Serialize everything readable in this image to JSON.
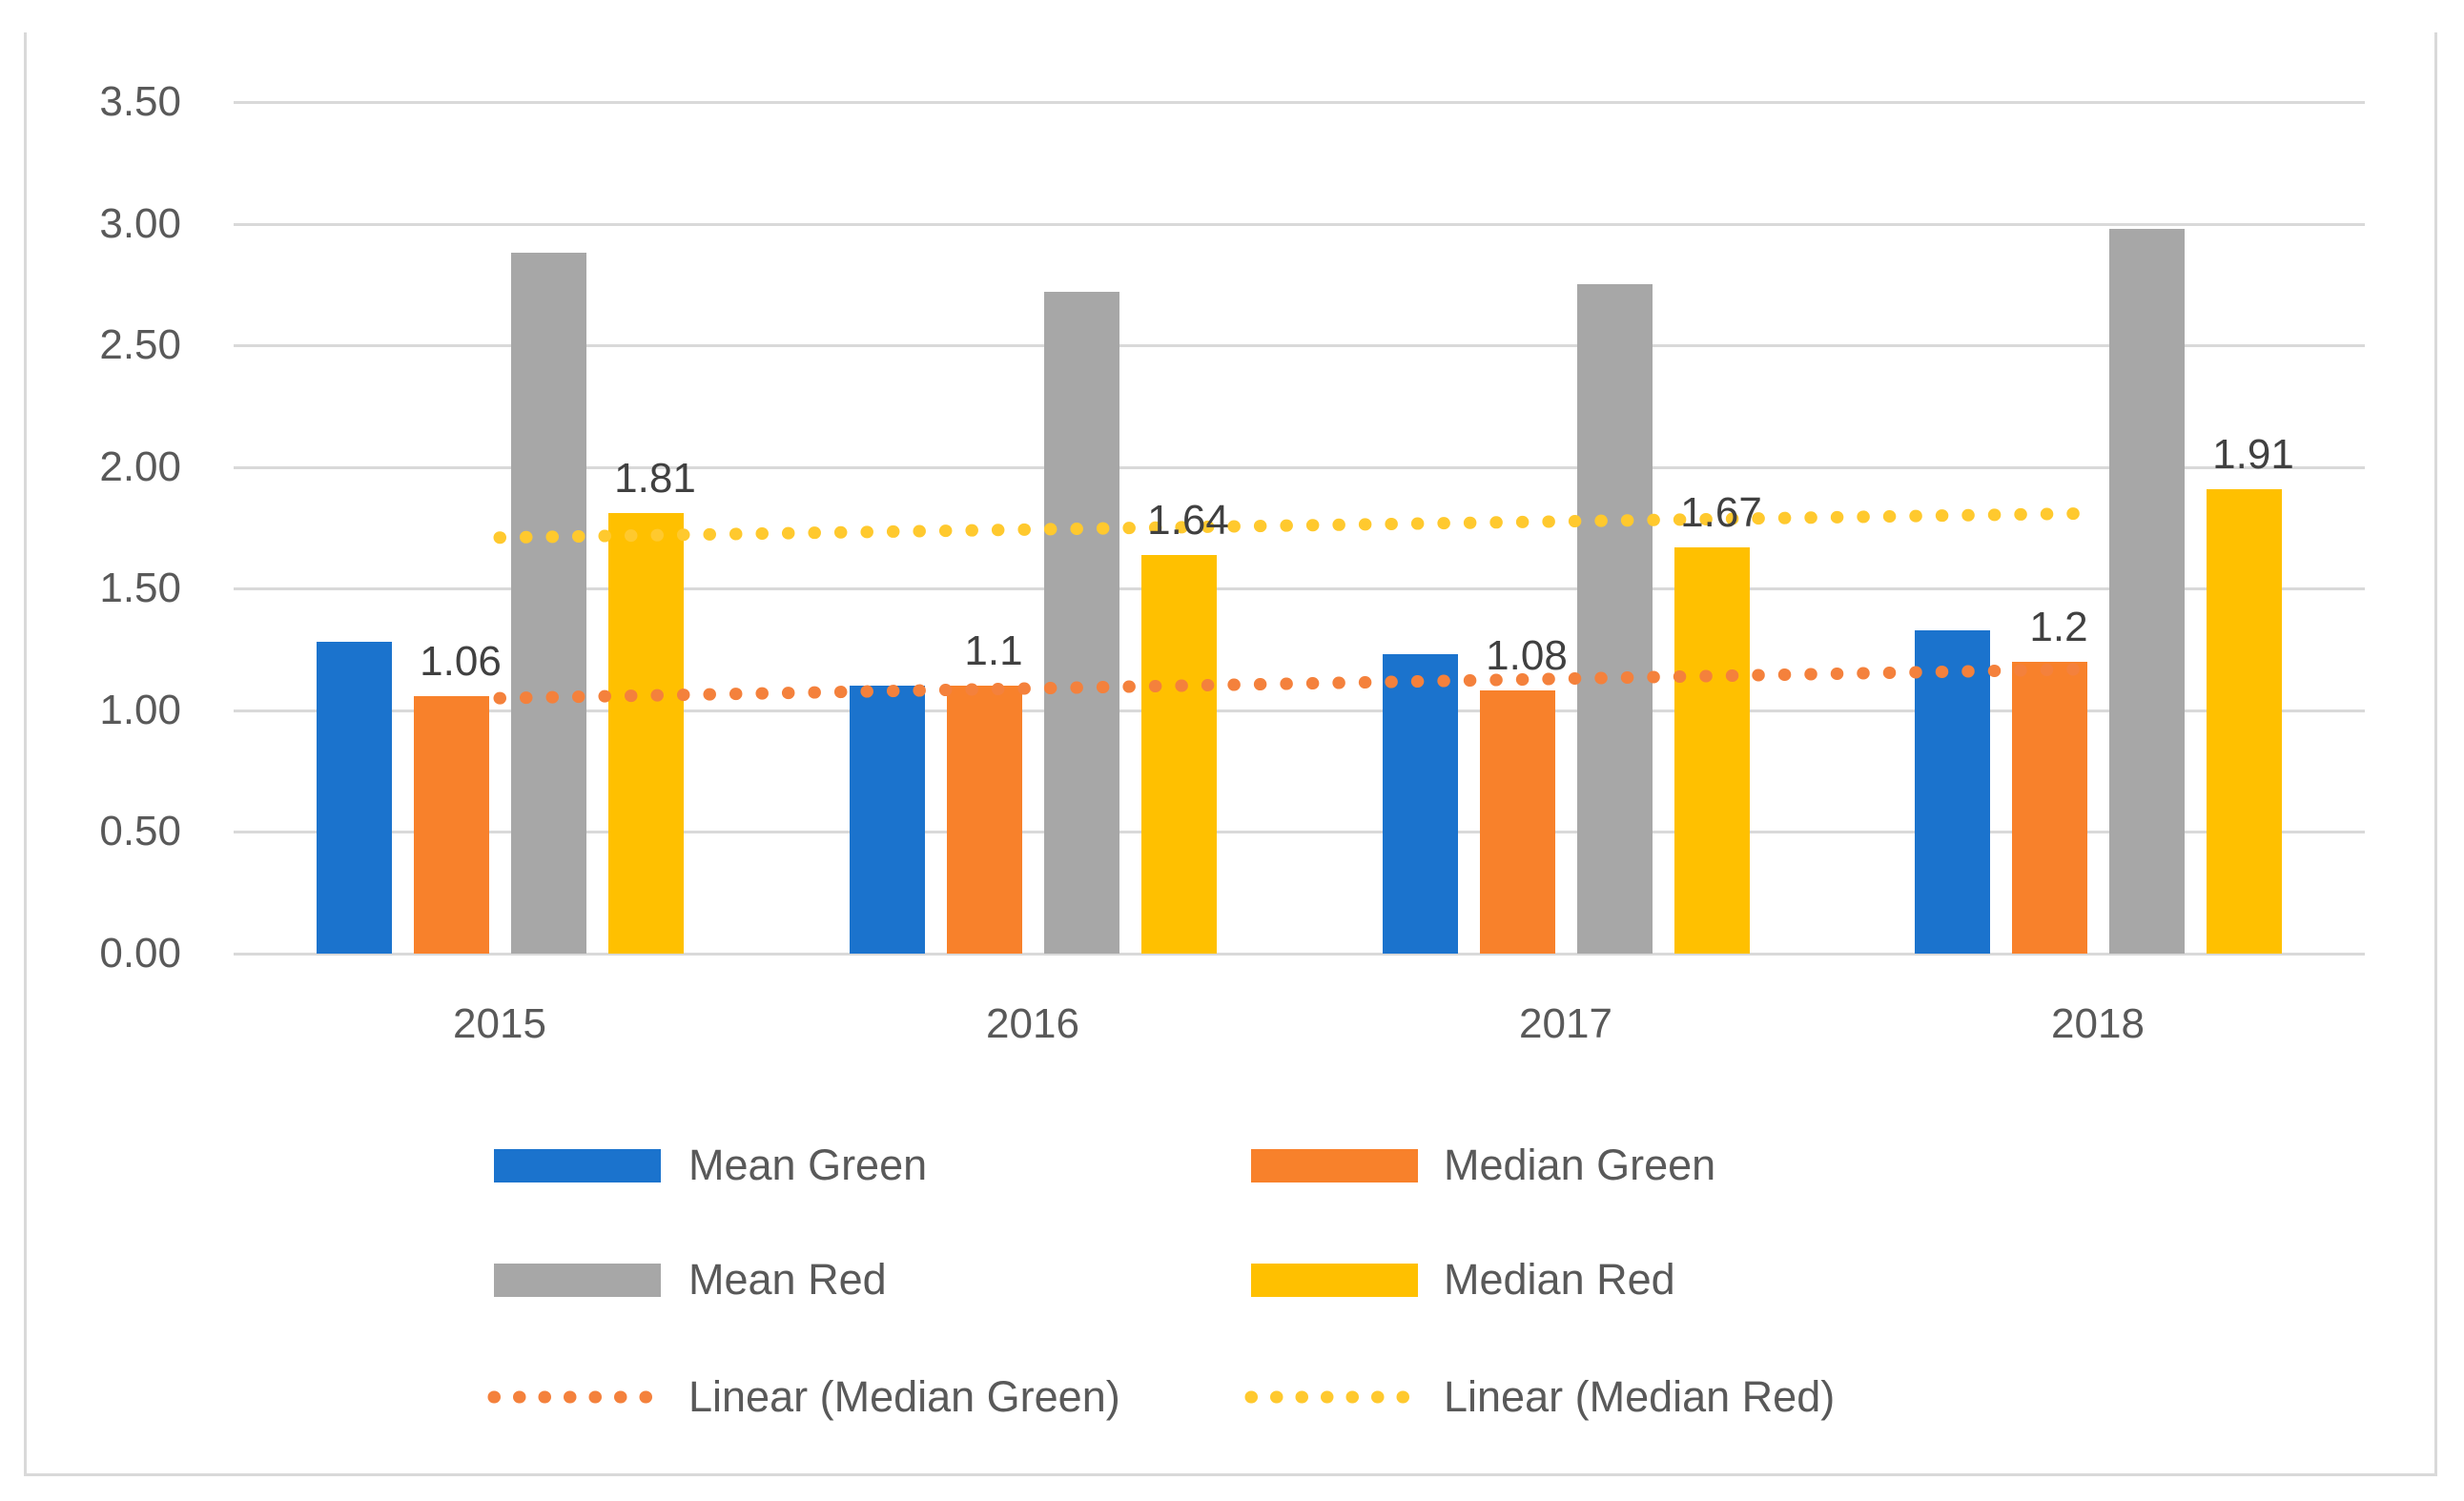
{
  "chart_data": {
    "type": "bar",
    "title": "",
    "xlabel": "",
    "ylabel": "",
    "categories": [
      "2015",
      "2016",
      "2017",
      "2018"
    ],
    "y_axis": {
      "min": 0,
      "max": 3.5,
      "step": 0.5,
      "tick_labels": [
        "0.00",
        "0.50",
        "1.00",
        "1.50",
        "2.00",
        "2.50",
        "3.00",
        "3.50"
      ]
    },
    "grid": true,
    "legend_position": "bottom",
    "series": [
      {
        "name": "Mean Green",
        "color": "#1B73CD",
        "values": [
          1.28,
          1.1,
          1.23,
          1.33
        ],
        "data_labels": null
      },
      {
        "name": "Median Green",
        "color": "#F8812B",
        "values": [
          1.06,
          1.1,
          1.08,
          1.2
        ],
        "data_labels": [
          "1.06",
          "1.1",
          "1.08",
          "1.2"
        ]
      },
      {
        "name": "Mean Red",
        "color": "#A7A7A7",
        "values": [
          2.88,
          2.72,
          2.75,
          2.98
        ],
        "data_labels": null
      },
      {
        "name": "Median Red",
        "color": "#FFC000",
        "values": [
          1.81,
          1.64,
          1.67,
          1.91
        ],
        "data_labels": [
          "1.81",
          "1.64",
          "1.67",
          "1.91"
        ]
      }
    ],
    "trendlines": [
      {
        "name": "Linear (Median Green)",
        "color": "#F4813C",
        "start_value": 1.05,
        "end_value": 1.17
      },
      {
        "name": "Linear (Median Red)",
        "color": "#FFC92E",
        "start_value": 1.71,
        "end_value": 1.81
      }
    ],
    "legend": {
      "entries": [
        {
          "label": "Mean Green",
          "swatch": "rect",
          "color": "#1B73CD"
        },
        {
          "label": "Median Green",
          "swatch": "rect",
          "color": "#F8812B"
        },
        {
          "label": "Mean Red",
          "swatch": "rect",
          "color": "#A7A7A7"
        },
        {
          "label": "Median Red",
          "swatch": "rect",
          "color": "#FFC000"
        },
        {
          "label": "Linear (Median Green)",
          "swatch": "dotted-line",
          "color": "#F4813C"
        },
        {
          "label": "Linear (Median Red)",
          "swatch": "dotted-line",
          "color": "#FFC92E"
        }
      ]
    },
    "colors": {
      "gridline": "#D9D9D9",
      "chart_border": "#D9D9D9",
      "axis_text": "#595959",
      "data_label_text": "#404040",
      "background": "#FFFFFF"
    }
  }
}
